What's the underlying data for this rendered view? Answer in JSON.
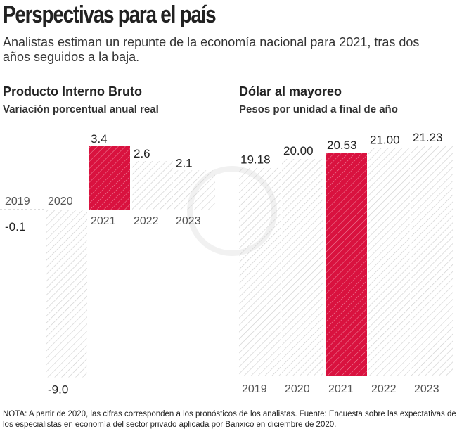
{
  "header": {
    "title": "Perspectivas para el país",
    "subtitle": "Analistas estiman un repunte de la economía nacional para 2021, tras dos años seguidos a la baja."
  },
  "colors": {
    "highlight": "#d9123f",
    "hatch": "#cccccc"
  },
  "chart_data": [
    {
      "type": "bar",
      "title": "Producto Interno Bruto",
      "subtitle": "Variación porcentual anual real",
      "categories": [
        "2019",
        "2020",
        "2021",
        "2022",
        "2023"
      ],
      "values": [
        -0.1,
        -9.0,
        3.4,
        2.6,
        2.1
      ],
      "labels": [
        "-0.1",
        "-9.0",
        "3.4",
        "2.6",
        "2.1"
      ],
      "highlight": "2021"
    },
    {
      "type": "bar",
      "title": "Dólar al mayoreo",
      "subtitle": "Pesos por unidad a final de año",
      "categories": [
        "2019",
        "2020",
        "2021",
        "2022",
        "2023"
      ],
      "values": [
        19.18,
        20.0,
        20.53,
        21.0,
        21.23
      ],
      "labels": [
        "19.18",
        "20.00",
        "20.53",
        "21.00",
        "21.23"
      ],
      "highlight": "2021"
    }
  ],
  "footer": {
    "note": "NOTA: A partir de 2020, las cifras corresponden a los pronósticos de los analistas. Fuente: Encuesta sobre las expectativas de los especialistas en economía del sector privado aplicada por Banxico en diciembre de 2020."
  }
}
